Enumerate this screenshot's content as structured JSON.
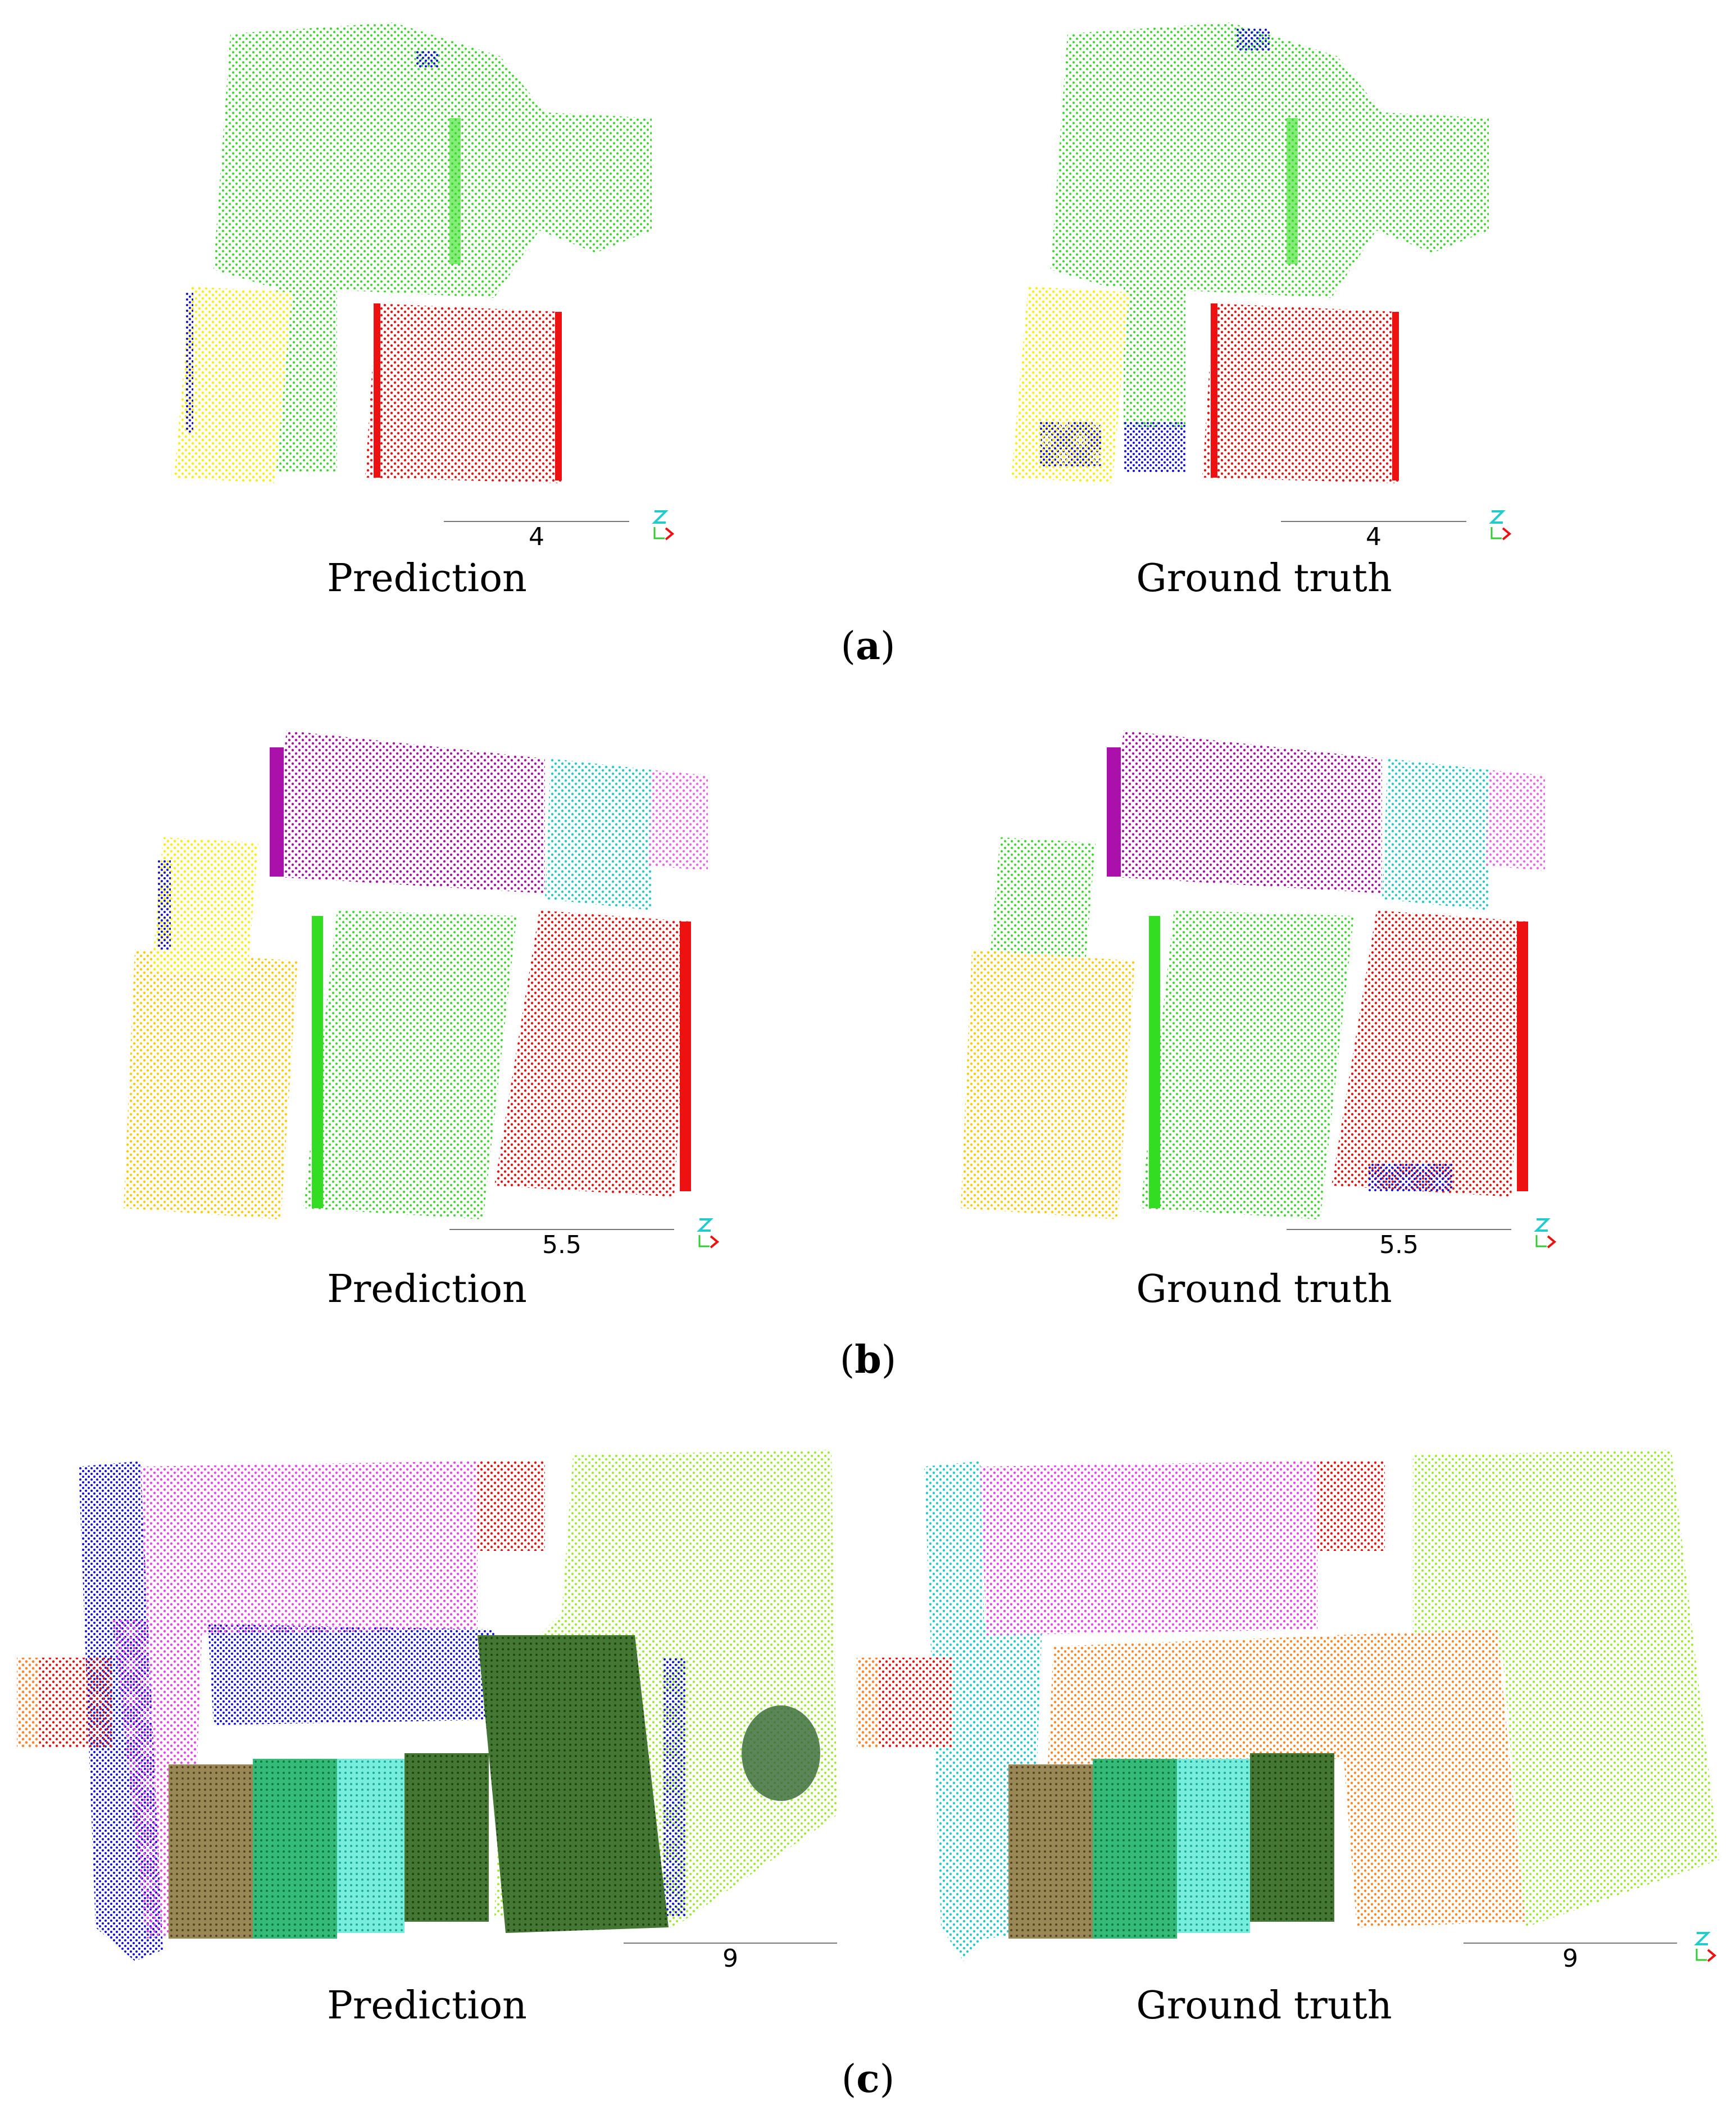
{
  "figure": {
    "rows": [
      {
        "id": "a",
        "subcaption_letter": "a",
        "panels": [
          {
            "label": "Prediction",
            "scale_value": "4"
          },
          {
            "label": "Ground truth",
            "scale_value": "4"
          }
        ]
      },
      {
        "id": "b",
        "subcaption_letter": "b",
        "panels": [
          {
            "label": "Prediction",
            "scale_value": "5.5"
          },
          {
            "label": "Ground truth",
            "scale_value": "5.5"
          }
        ]
      },
      {
        "id": "c",
        "subcaption_letter": "c",
        "panels": [
          {
            "label": "Prediction",
            "scale_value": "9"
          },
          {
            "label": "Ground truth",
            "scale_value": "9"
          }
        ]
      }
    ],
    "colors": {
      "green": "#33dd22",
      "red": "#ee1111",
      "yellow": "#ffee00",
      "blue": "#1111dd",
      "purple": "#aa11aa",
      "cyan": "#22cccc",
      "pink": "#ee66ee",
      "gold": "#ffcc00",
      "lime": "#99ee22",
      "orange": "#ff8822",
      "darkgreen": "#336622",
      "olive": "#776633",
      "teal": "#22aa66",
      "aqua": "#55eedd",
      "magenta": "#ee44ee"
    },
    "axis_icon": "xyz-axis-icon"
  }
}
